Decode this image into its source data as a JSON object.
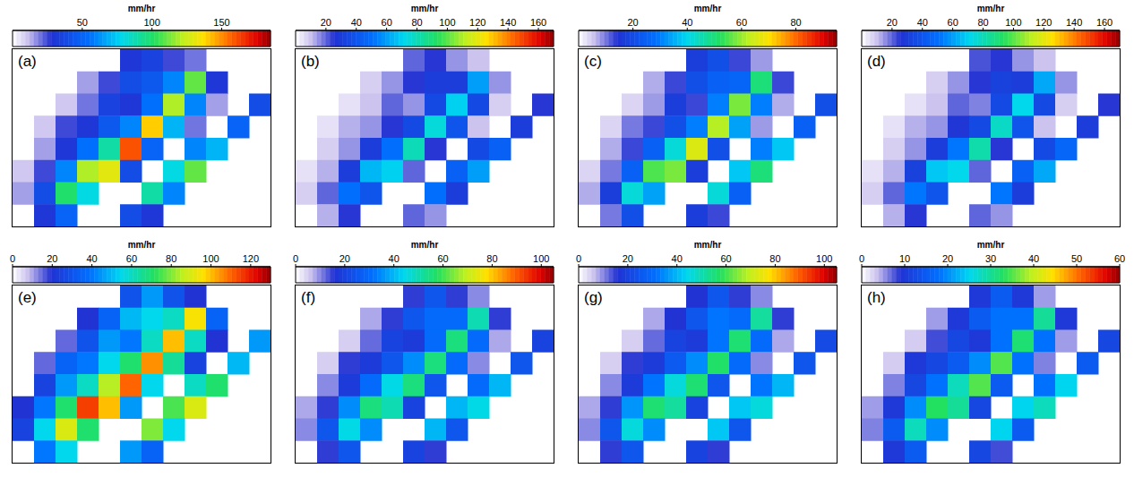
{
  "chart_data": [
    {
      "type": "heatmap",
      "title": "(a)",
      "tick_labels": false,
      "colorbar_label": "mm/hr",
      "colorbar_range": [
        0,
        185
      ],
      "colorbar_ticks": [
        50,
        100,
        150
      ],
      "cells": [
        [
          null,
          null,
          null,
          null,
          null,
          30,
          35,
          25,
          20,
          null,
          null,
          null
        ],
        [
          null,
          null,
          null,
          15,
          25,
          40,
          45,
          60,
          110,
          30,
          null,
          null
        ],
        [
          null,
          null,
          10,
          20,
          35,
          30,
          55,
          120,
          60,
          15,
          null,
          40
        ],
        [
          null,
          10,
          25,
          30,
          45,
          60,
          140,
          70,
          20,
          null,
          50,
          null
        ],
        [
          null,
          15,
          30,
          55,
          90,
          160,
          50,
          null,
          60,
          70,
          null,
          null
        ],
        [
          10,
          25,
          60,
          120,
          130,
          40,
          null,
          80,
          110,
          null,
          null,
          null
        ],
        [
          15,
          40,
          100,
          80,
          null,
          null,
          90,
          60,
          null,
          null,
          null,
          null
        ],
        [
          null,
          30,
          50,
          null,
          null,
          40,
          30,
          null,
          null,
          null,
          null,
          null
        ]
      ]
    },
    {
      "type": "heatmap",
      "title": "(b)",
      "tick_labels": false,
      "colorbar_label": "mm/hr",
      "colorbar_range": [
        0,
        170
      ],
      "colorbar_ticks": [
        20,
        40,
        60,
        80,
        100,
        120,
        140,
        160
      ],
      "cells": [
        [
          null,
          null,
          null,
          null,
          null,
          20,
          25,
          15,
          10,
          null,
          null,
          null
        ],
        [
          null,
          null,
          null,
          8,
          15,
          25,
          30,
          30,
          60,
          15,
          null,
          null
        ],
        [
          null,
          null,
          5,
          10,
          20,
          15,
          35,
          70,
          35,
          8,
          null,
          25
        ],
        [
          null,
          5,
          12,
          15,
          25,
          35,
          75,
          40,
          10,
          null,
          30,
          null
        ],
        [
          null,
          8,
          15,
          30,
          50,
          80,
          25,
          null,
          35,
          45,
          null,
          null
        ],
        [
          5,
          12,
          30,
          65,
          70,
          20,
          null,
          45,
          60,
          null,
          null,
          null
        ],
        [
          8,
          20,
          50,
          40,
          null,
          null,
          50,
          30,
          null,
          null,
          null,
          null
        ],
        [
          null,
          12,
          25,
          null,
          null,
          20,
          15,
          null,
          null,
          null,
          null,
          null
        ]
      ]
    },
    {
      "type": "heatmap",
      "title": "(c)",
      "tick_labels": false,
      "colorbar_label": "mm/hr",
      "colorbar_range": [
        0,
        95
      ],
      "colorbar_ticks": [
        20,
        40,
        60,
        80
      ],
      "cells": [
        [
          null,
          null,
          null,
          null,
          null,
          17,
          21,
          13,
          8,
          null,
          null,
          null
        ],
        [
          null,
          null,
          null,
          7,
          13,
          21,
          25,
          26,
          50,
          13,
          null,
          null
        ],
        [
          null,
          null,
          4,
          8,
          17,
          13,
          30,
          58,
          30,
          7,
          null,
          21
        ],
        [
          null,
          4,
          10,
          13,
          21,
          30,
          62,
          34,
          8,
          null,
          25,
          null
        ],
        [
          null,
          7,
          13,
          25,
          42,
          66,
          21,
          null,
          30,
          38,
          null,
          null
        ],
        [
          4,
          10,
          25,
          55,
          58,
          17,
          null,
          38,
          50,
          null,
          null,
          null
        ],
        [
          7,
          17,
          42,
          34,
          null,
          null,
          42,
          25,
          null,
          null,
          null,
          null
        ],
        [
          null,
          10,
          21,
          null,
          null,
          17,
          13,
          null,
          null,
          null,
          null,
          null
        ]
      ]
    },
    {
      "type": "heatmap",
      "title": "(d)",
      "tick_labels": false,
      "colorbar_label": "mm/hr",
      "colorbar_range": [
        0,
        170
      ],
      "colorbar_ticks": [
        20,
        40,
        60,
        80,
        100,
        120,
        140,
        160
      ],
      "cells": [
        [
          null,
          null,
          null,
          null,
          null,
          22,
          25,
          15,
          10,
          null,
          null,
          null
        ],
        [
          null,
          null,
          null,
          8,
          15,
          25,
          32,
          30,
          62,
          15,
          null,
          null
        ],
        [
          null,
          null,
          5,
          10,
          20,
          17,
          35,
          72,
          35,
          8,
          null,
          25
        ],
        [
          null,
          5,
          12,
          15,
          27,
          35,
          78,
          40,
          10,
          null,
          30,
          null
        ],
        [
          null,
          8,
          15,
          30,
          52,
          82,
          25,
          null,
          35,
          47,
          null,
          null
        ],
        [
          5,
          12,
          32,
          68,
          72,
          20,
          null,
          45,
          62,
          null,
          null,
          null
        ],
        [
          8,
          20,
          52,
          40,
          null,
          null,
          52,
          30,
          null,
          null,
          null,
          null
        ],
        [
          null,
          12,
          25,
          null,
          null,
          20,
          15,
          null,
          null,
          null,
          null,
          null
        ]
      ]
    },
    {
      "type": "heatmap",
      "title": "(e)",
      "tick_labels": false,
      "colorbar_label": "mm/hr",
      "colorbar_range": [
        0,
        130
      ],
      "colorbar_ticks": [
        0,
        20,
        40,
        60,
        80,
        100,
        120
      ],
      "cells": [
        [
          null,
          null,
          null,
          null,
          null,
          30,
          45,
          30,
          20,
          null,
          null,
          null
        ],
        [
          null,
          null,
          null,
          20,
          35,
          50,
          55,
          60,
          95,
          35,
          null,
          null
        ],
        [
          null,
          null,
          15,
          30,
          45,
          40,
          60,
          100,
          60,
          20,
          null,
          45
        ],
        [
          null,
          15,
          35,
          40,
          55,
          70,
          105,
          65,
          25,
          null,
          50,
          null
        ],
        [
          null,
          25,
          45,
          60,
          85,
          110,
          55,
          null,
          60,
          70,
          null,
          null
        ],
        [
          20,
          40,
          70,
          115,
          100,
          45,
          null,
          75,
          90,
          null,
          null,
          null
        ],
        [
          25,
          55,
          90,
          70,
          null,
          null,
          80,
          55,
          null,
          null,
          null,
          null
        ],
        [
          null,
          40,
          55,
          null,
          null,
          45,
          35,
          null,
          null,
          null,
          null,
          null
        ]
      ]
    },
    {
      "type": "heatmap",
      "title": "(f)",
      "tick_labels": false,
      "colorbar_label": "mm/hr",
      "colorbar_range": [
        0,
        105
      ],
      "colorbar_ticks": [
        0,
        20,
        40,
        60,
        80,
        100
      ],
      "cells": [
        [
          null,
          null,
          null,
          null,
          null,
          15,
          25,
          15,
          10,
          null,
          null,
          null
        ],
        [
          null,
          null,
          null,
          8,
          15,
          25,
          30,
          30,
          50,
          15,
          null,
          null
        ],
        [
          null,
          null,
          5,
          12,
          20,
          18,
          30,
          55,
          30,
          8,
          null,
          20
        ],
        [
          null,
          5,
          15,
          18,
          25,
          35,
          55,
          30,
          10,
          null,
          25,
          null
        ],
        [
          null,
          10,
          18,
          30,
          45,
          55,
          25,
          null,
          30,
          40,
          null,
          null
        ],
        [
          8,
          15,
          35,
          55,
          50,
          20,
          null,
          40,
          45,
          null,
          null,
          null
        ],
        [
          10,
          25,
          45,
          35,
          null,
          null,
          40,
          25,
          null,
          null,
          null,
          null
        ],
        [
          null,
          15,
          25,
          null,
          null,
          20,
          15,
          null,
          null,
          null,
          null,
          null
        ]
      ]
    },
    {
      "type": "heatmap",
      "title": "(g)",
      "tick_labels": false,
      "colorbar_label": "mm/hr",
      "colorbar_range": [
        0,
        105
      ],
      "colorbar_ticks": [
        0,
        20,
        40,
        60,
        80,
        100
      ],
      "cells": [
        [
          null,
          null,
          null,
          null,
          null,
          16,
          25,
          15,
          10,
          null,
          null,
          null
        ],
        [
          null,
          null,
          null,
          8,
          16,
          25,
          32,
          30,
          52,
          15,
          null,
          null
        ],
        [
          null,
          null,
          5,
          12,
          20,
          18,
          32,
          56,
          30,
          8,
          null,
          22
        ],
        [
          null,
          5,
          15,
          18,
          26,
          35,
          57,
          30,
          10,
          null,
          25,
          null
        ],
        [
          null,
          10,
          18,
          32,
          46,
          56,
          25,
          null,
          32,
          40,
          null,
          null
        ],
        [
          8,
          15,
          36,
          56,
          52,
          20,
          null,
          42,
          46,
          null,
          null,
          null
        ],
        [
          10,
          25,
          46,
          35,
          null,
          null,
          42,
          25,
          null,
          null,
          null,
          null
        ],
        [
          null,
          15,
          25,
          null,
          null,
          20,
          15,
          null,
          null,
          null,
          null,
          null
        ]
      ]
    },
    {
      "type": "heatmap",
      "title": "(h)",
      "tick_labels": false,
      "colorbar_label": "mm/hr",
      "colorbar_range": [
        0,
        60
      ],
      "colorbar_ticks": [
        0,
        10,
        20,
        30,
        40,
        50,
        60
      ],
      "cells": [
        [
          null,
          null,
          null,
          null,
          null,
          10,
          15,
          10,
          5,
          null,
          null,
          null
        ],
        [
          null,
          null,
          null,
          5,
          10,
          15,
          18,
          18,
          30,
          10,
          null,
          null
        ],
        [
          null,
          null,
          3,
          8,
          12,
          10,
          18,
          32,
          18,
          5,
          null,
          12
        ],
        [
          null,
          3,
          10,
          12,
          15,
          20,
          35,
          18,
          6,
          null,
          15,
          null
        ],
        [
          null,
          6,
          12,
          18,
          28,
          35,
          15,
          null,
          18,
          25,
          null,
          null
        ],
        [
          5,
          10,
          20,
          33,
          30,
          12,
          null,
          25,
          28,
          null,
          null,
          null
        ],
        [
          6,
          15,
          28,
          20,
          null,
          null,
          25,
          15,
          null,
          null,
          null,
          null
        ],
        [
          null,
          10,
          15,
          null,
          null,
          12,
          8,
          null,
          null,
          null,
          null,
          null
        ]
      ]
    }
  ]
}
